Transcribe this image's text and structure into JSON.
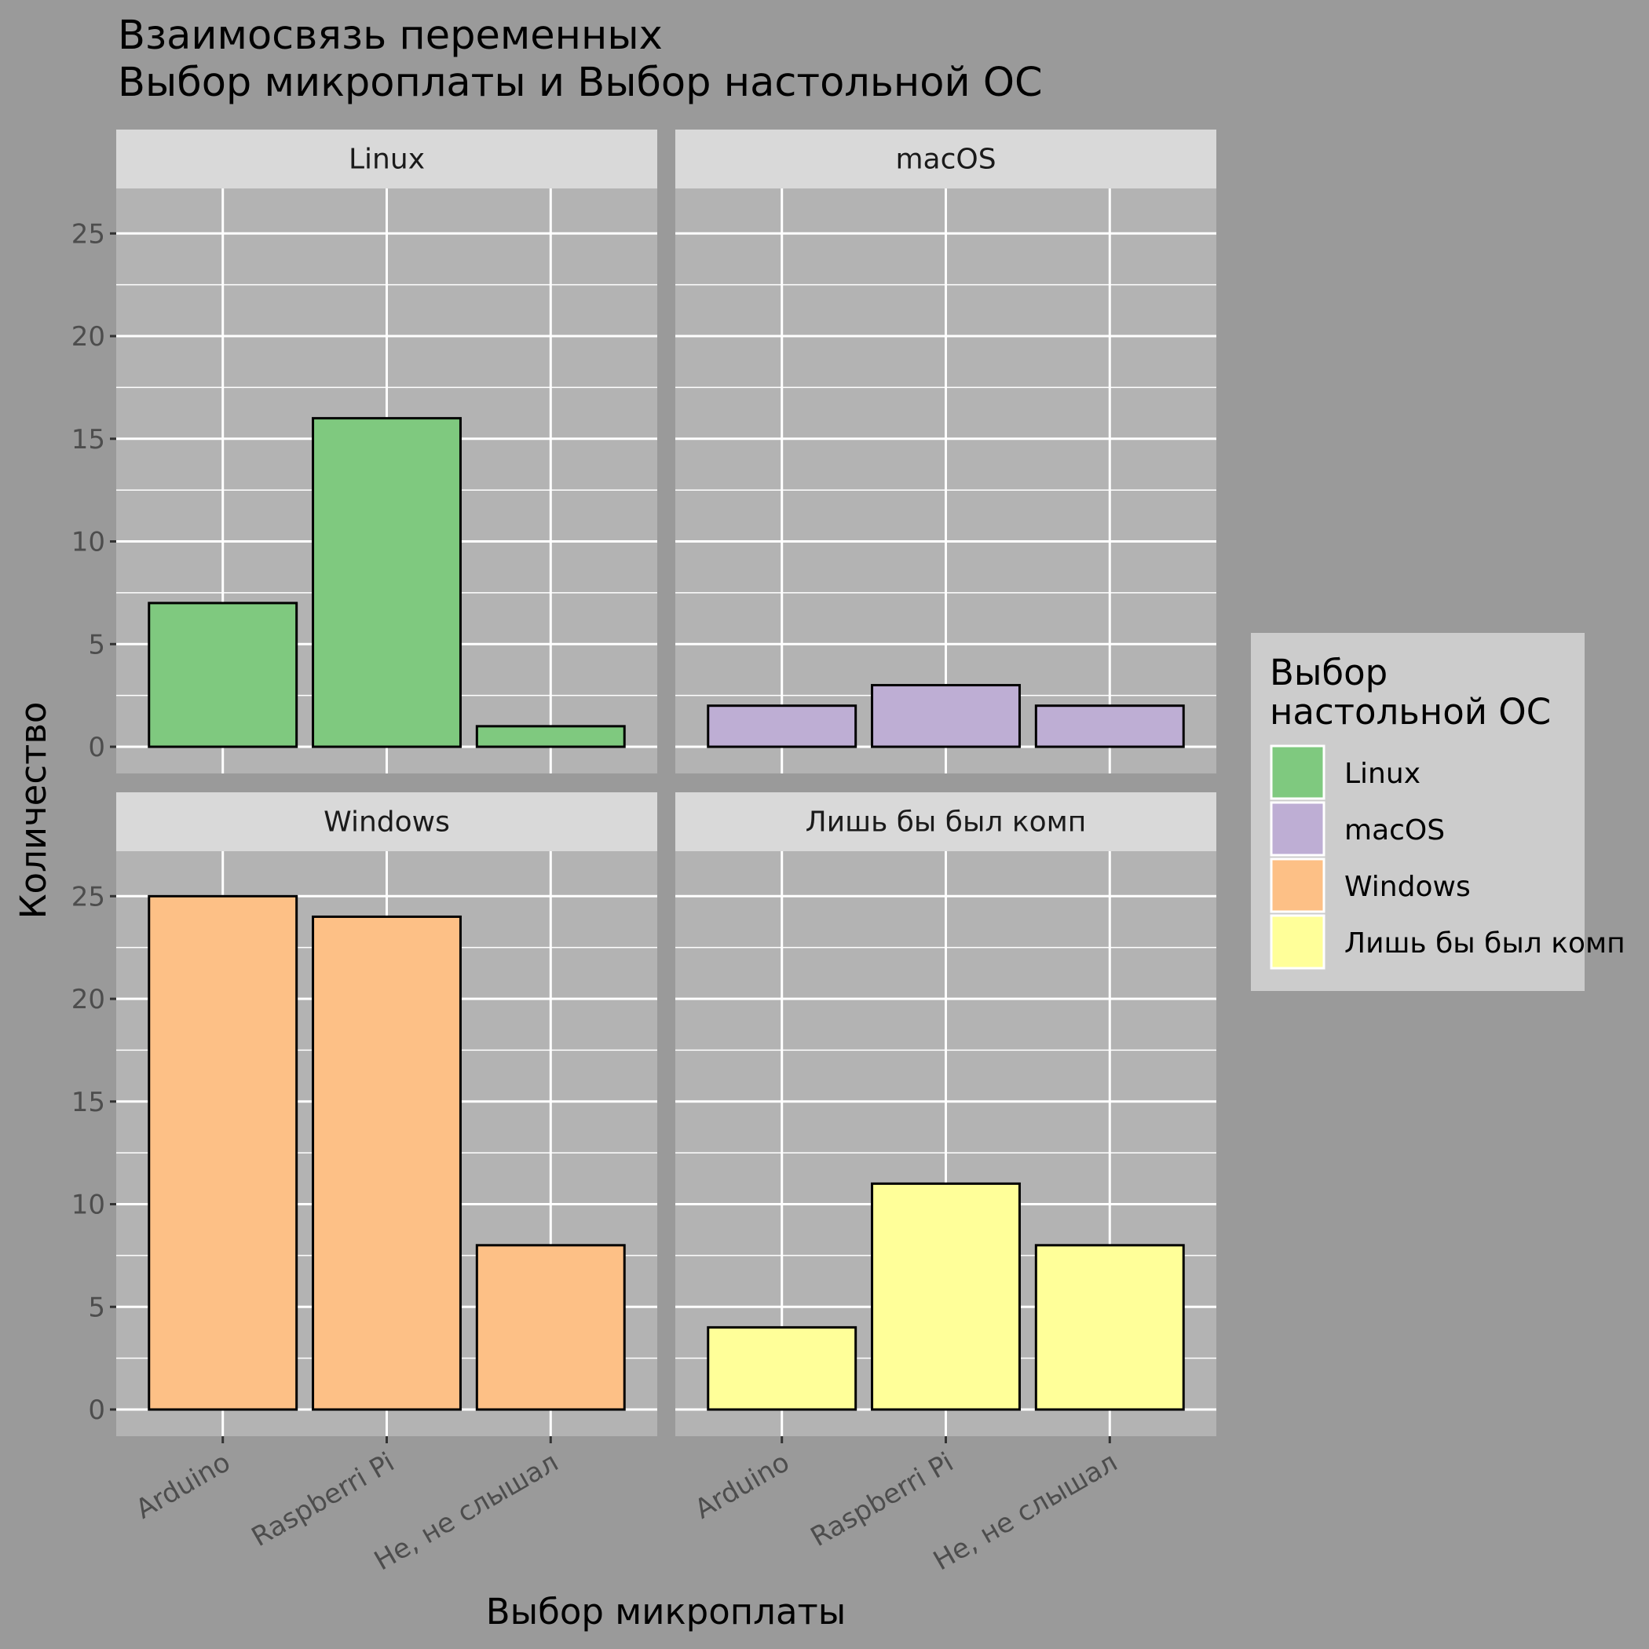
{
  "chart_data": {
    "type": "bar",
    "title": "Взаимосвязь переменных\n Выбор микроплаты и Выбор настольной ОС",
    "xlabel": "Выбор микроплаты",
    "ylabel": "Количество",
    "categories": [
      "Arduino",
      "Raspberri Pi",
      "Не, не слышал"
    ],
    "ylim": [
      0,
      27
    ],
    "yticks": [
      0,
      5,
      10,
      15,
      20,
      25
    ],
    "grid": true,
    "legend": {
      "title": "Выбор\nнастольной ОС",
      "position": "right",
      "entries": [
        "Linux",
        "macOS",
        "Windows",
        "Лишь бы был комп"
      ]
    },
    "facets": [
      {
        "name": "Linux",
        "color": "#7fc97f",
        "values": [
          7,
          16,
          1
        ]
      },
      {
        "name": "macOS",
        "color": "#beaed4",
        "values": [
          2,
          3,
          2
        ]
      },
      {
        "name": "Windows",
        "color": "#fdc086",
        "values": [
          25,
          24,
          8
        ]
      },
      {
        "name": "Лишь бы был комп",
        "color": "#ffff99",
        "values": [
          4,
          11,
          8
        ]
      }
    ],
    "colors": {
      "page_background": "#9a9a9a",
      "panel_background": "#b3b3b3",
      "strip_background": "#d9d9d9",
      "legend_background": "#cccccc",
      "grid": "#ffffff",
      "bar_outline": "#000000"
    }
  }
}
